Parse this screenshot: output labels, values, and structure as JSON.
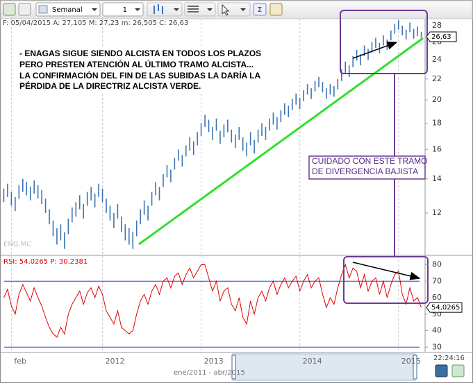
{
  "toolbar": {
    "period": "Semanal",
    "count": "1"
  },
  "header": "F: 05/04/2015 A: 27,105 M: 27,23 m: 26,505 C: 26,63",
  "symbol": "ENG.MC",
  "annotations": {
    "main_note": [
      "- ENAGAS SIGUE SIENDO ALCISTA EN TODOS LOS PLAZOS",
      "PERO PRESTEN ATENCIÓN AL ÚLTIMO TRAMO ALCISTA...",
      "LA CONFIRMACIÓN DEL FIN DE LAS SUBIDAS LA DARÍA LA",
      "PÉRDIDA DE LA DIRECTRIZ ALCISTA VERDE."
    ],
    "warning": [
      "CUIDADO CON ESTE TRAMO",
      "DE DIVERGENCIA BAJISTA"
    ]
  },
  "clock": "22:24:16",
  "navigator": "ene/2011 - abr/2015",
  "chart_data": [
    {
      "type": "hilo",
      "color": "#3c74b4",
      "log_scale": true,
      "ylim": [
        10,
        30
      ],
      "yticks": [
        12,
        14,
        16,
        18,
        20,
        22,
        24,
        26,
        28
      ],
      "xlim": [
        -1,
        111
      ],
      "xticks": [
        {
          "value": 2,
          "label": "feb"
        },
        {
          "value": 26,
          "label": "2012"
        },
        {
          "value": 52,
          "label": "2013"
        },
        {
          "value": 78,
          "label": "2014"
        },
        {
          "value": 104,
          "label": "2015"
        }
      ],
      "grid": true,
      "last_value": {
        "value": 26.63,
        "label": "26,63"
      },
      "low": [
        12.6,
        12.9,
        12.4,
        12.1,
        12.8,
        13.2,
        13.0,
        12.7,
        13.1,
        12.8,
        12.5,
        12.0,
        11.4,
        10.8,
        10.4,
        10.6,
        10.2,
        10.9,
        11.5,
        11.8,
        12.2,
        11.7,
        12.4,
        12.7,
        12.3,
        12.9,
        12.6,
        12.0,
        11.6,
        11.2,
        11.7,
        11.0,
        10.6,
        10.4,
        10.2,
        10.8,
        11.4,
        11.9,
        11.6,
        12.4,
        13.0,
        12.7,
        13.5,
        14.1,
        13.8,
        14.6,
        15.2,
        14.8,
        15.5,
        15.9,
        15.6,
        16.3,
        17.0,
        17.7,
        17.3,
        16.7,
        17.4,
        16.4,
        16.9,
        17.3,
        16.5,
        16.1,
        16.7,
        15.9,
        15.5,
        16.3,
        15.7,
        16.5,
        17.0,
        16.7,
        17.4,
        17.9,
        17.5,
        18.1,
        18.7,
        18.5,
        19.1,
        19.6,
        19.2,
        19.9,
        20.5,
        20.1,
        20.8,
        21.2,
        20.7,
        20.1,
        20.5,
        20.3,
        21.0,
        21.8,
        22.6,
        22.2,
        23.2,
        23.9,
        23.4,
        24.4,
        24.0,
        24.8,
        25.3,
        24.7,
        25.6,
        25.1,
        26.2,
        27.0,
        27.5,
        26.8,
        26.3,
        27.2,
        26.4,
        26.7,
        26.505
      ],
      "high": [
        13.4,
        13.7,
        13.2,
        12.9,
        13.6,
        14.0,
        13.8,
        13.5,
        13.9,
        13.6,
        13.3,
        12.8,
        12.2,
        11.6,
        11.2,
        11.4,
        11.0,
        11.7,
        12.3,
        12.6,
        13.0,
        12.5,
        13.2,
        13.5,
        13.1,
        13.7,
        13.4,
        12.8,
        12.4,
        12.0,
        12.5,
        11.8,
        11.4,
        11.2,
        11.0,
        11.6,
        12.2,
        12.7,
        12.4,
        13.2,
        13.8,
        13.5,
        14.3,
        14.9,
        14.6,
        15.4,
        16.0,
        15.6,
        16.3,
        16.9,
        16.6,
        17.3,
        18.0,
        18.7,
        18.3,
        17.7,
        18.4,
        17.4,
        17.9,
        18.3,
        17.5,
        17.1,
        17.7,
        16.9,
        16.5,
        17.3,
        16.7,
        17.5,
        18.0,
        17.7,
        18.4,
        18.9,
        18.5,
        19.1,
        19.7,
        19.5,
        20.1,
        20.6,
        20.2,
        20.9,
        21.5,
        21.1,
        21.8,
        22.2,
        21.7,
        21.1,
        21.5,
        21.3,
        22.0,
        23.0,
        23.8,
        23.4,
        24.4,
        25.1,
        24.6,
        25.6,
        25.2,
        26.0,
        26.5,
        25.9,
        26.8,
        26.3,
        27.4,
        28.2,
        28.7,
        28.0,
        27.5,
        28.4,
        27.6,
        27.9,
        27.23
      ]
    },
    {
      "type": "line",
      "title": "RSI: 54,0265 P: 30,2381",
      "color": "#e00000",
      "ylim": [
        28,
        84
      ],
      "yticks": [
        30,
        40,
        50,
        60,
        70,
        80
      ],
      "levels": [
        70,
        30
      ],
      "level_color": "#3232c8",
      "last_value": {
        "value": 54.0265,
        "label": "54,0265"
      },
      "values": [
        60,
        65,
        55,
        50,
        62,
        68,
        63,
        58,
        66,
        60,
        55,
        48,
        42,
        38,
        36,
        42,
        38,
        50,
        56,
        60,
        64,
        56,
        63,
        66,
        60,
        67,
        62,
        52,
        48,
        44,
        52,
        42,
        40,
        38,
        40,
        50,
        58,
        62,
        56,
        64,
        68,
        62,
        70,
        72,
        66,
        73,
        75,
        68,
        74,
        78,
        72,
        76,
        80,
        80,
        72,
        64,
        70,
        58,
        64,
        66,
        56,
        52,
        60,
        48,
        44,
        58,
        50,
        60,
        64,
        58,
        66,
        70,
        62,
        68,
        72,
        66,
        70,
        73,
        64,
        70,
        74,
        66,
        70,
        72,
        62,
        54,
        60,
        56,
        66,
        74,
        80,
        72,
        78,
        76,
        66,
        74,
        64,
        70,
        72,
        62,
        70,
        60,
        68,
        74,
        76,
        62,
        56,
        66,
        58,
        60,
        54.0265
      ]
    }
  ]
}
